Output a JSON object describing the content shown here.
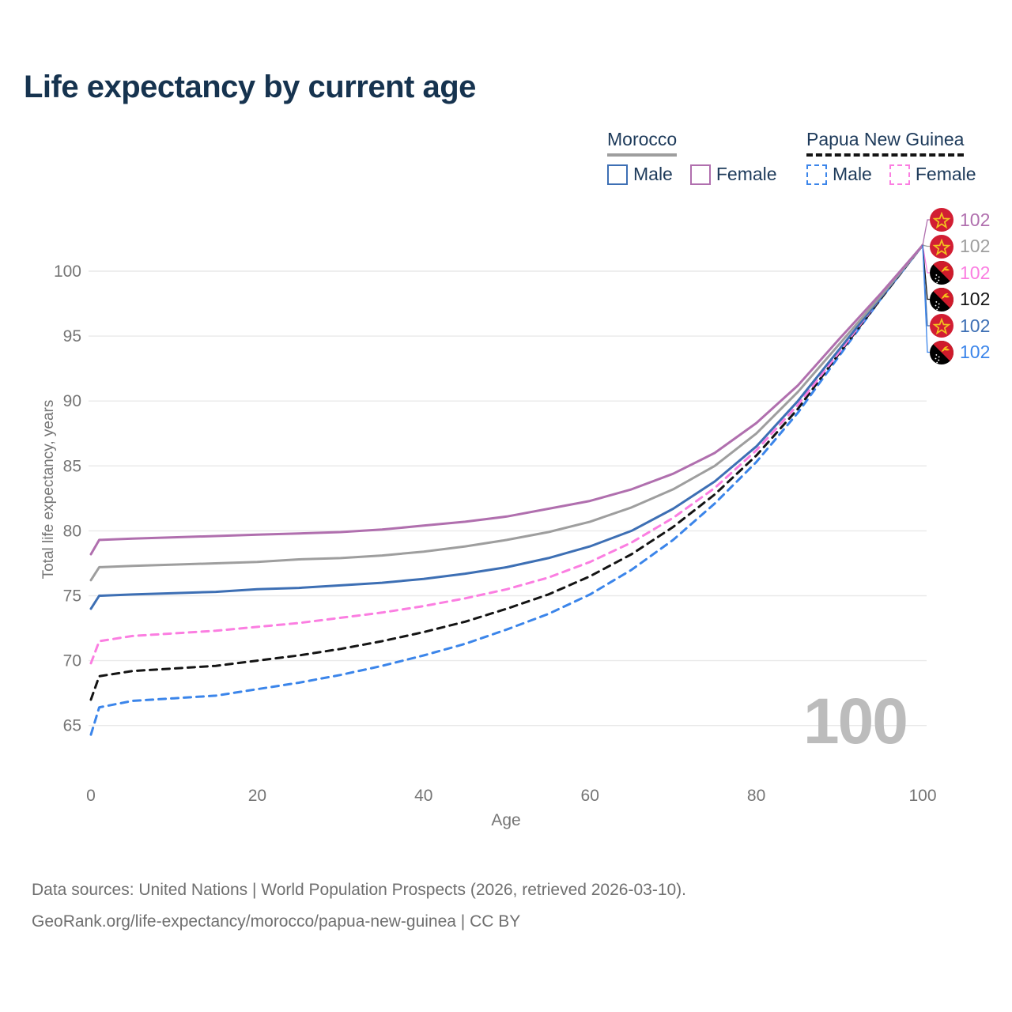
{
  "title": "Life expectancy by current age",
  "watermark": "100",
  "footer": {
    "line1": "Data sources: United Nations | World Population Prospects (2026, retrieved 2026-03-10).",
    "line2": "GeoRank.org/life-expectancy/morocco/papua-new-guinea | CC BY"
  },
  "legend": {
    "groups": [
      {
        "name": "Morocco",
        "line_style": "solid",
        "underline_color": "#9e9e9e",
        "items": [
          {
            "label": "Male",
            "color": "#3d6fb4"
          },
          {
            "label": "Female",
            "color": "#b06fae"
          }
        ]
      },
      {
        "name": "Papua New Guinea",
        "line_style": "dashed",
        "underline_color": "#141414",
        "items": [
          {
            "label": "Male",
            "color": "#3b85ea"
          },
          {
            "label": "Female",
            "color": "#fb7ee1"
          }
        ]
      }
    ]
  },
  "chart_data": {
    "type": "line",
    "title": "Life expectancy by current age",
    "xlabel": "Age",
    "ylabel": "Total life expectancy, years",
    "x_ticks": [
      0,
      20,
      40,
      60,
      80,
      100
    ],
    "y_ticks": [
      65,
      70,
      75,
      80,
      85,
      90,
      95,
      100
    ],
    "xlim": [
      0,
      100
    ],
    "ylim": [
      63.5,
      103
    ],
    "grid": "horizontal",
    "legend_position": "top-right",
    "x": [
      0,
      1,
      5,
      10,
      15,
      20,
      25,
      30,
      35,
      40,
      45,
      50,
      55,
      60,
      65,
      70,
      75,
      80,
      85,
      90,
      95,
      100
    ],
    "series": [
      {
        "name": "Morocco Female",
        "country": "Morocco",
        "sex": "Female",
        "color": "#b06fae",
        "dashed": false,
        "flag": "morocco",
        "end_label": "102",
        "values": [
          78.2,
          79.3,
          79.4,
          79.5,
          79.6,
          79.7,
          79.8,
          79.9,
          80.1,
          80.4,
          80.7,
          81.1,
          81.7,
          82.3,
          83.2,
          84.4,
          86.0,
          88.3,
          91.2,
          94.8,
          98.3,
          102
        ]
      },
      {
        "name": "Morocco",
        "country": "Morocco",
        "sex": "Both",
        "color": "#9e9e9e",
        "dashed": false,
        "flag": "morocco",
        "end_label": "102",
        "values": [
          76.2,
          77.2,
          77.3,
          77.4,
          77.5,
          77.6,
          77.8,
          77.9,
          78.1,
          78.4,
          78.8,
          79.3,
          79.9,
          80.7,
          81.8,
          83.2,
          85.0,
          87.5,
          90.7,
          94.4,
          98.1,
          102
        ]
      },
      {
        "name": "Morocco Male",
        "country": "Morocco",
        "sex": "Male",
        "color": "#3d6fb4",
        "dashed": false,
        "flag": "morocco",
        "end_label": "102",
        "values": [
          74.0,
          75.0,
          75.1,
          75.2,
          75.3,
          75.5,
          75.6,
          75.8,
          76.0,
          76.3,
          76.7,
          77.2,
          77.9,
          78.8,
          80.0,
          81.7,
          83.8,
          86.5,
          90.0,
          94.0,
          98.0,
          102
        ]
      },
      {
        "name": "Papua New Guinea Female",
        "country": "Papua New Guinea",
        "sex": "Female",
        "color": "#fb7ee1",
        "dashed": true,
        "flag": "papua-new-guinea",
        "end_label": "102",
        "values": [
          69.8,
          71.5,
          71.9,
          72.1,
          72.3,
          72.6,
          72.9,
          73.3,
          73.7,
          74.2,
          74.8,
          75.5,
          76.4,
          77.6,
          79.1,
          81.0,
          83.3,
          86.2,
          89.7,
          93.8,
          98.0,
          102
        ]
      },
      {
        "name": "Papua New Guinea",
        "country": "Papua New Guinea",
        "sex": "Both",
        "color": "#141414",
        "dashed": true,
        "flag": "papua-new-guinea",
        "end_label": "102",
        "values": [
          67.0,
          68.8,
          69.2,
          69.4,
          69.6,
          70.0,
          70.4,
          70.9,
          71.5,
          72.2,
          73.0,
          74.0,
          75.1,
          76.5,
          78.2,
          80.3,
          82.8,
          85.8,
          89.4,
          93.7,
          97.9,
          102
        ]
      },
      {
        "name": "Papua New Guinea Male",
        "country": "Papua New Guinea",
        "sex": "Male",
        "color": "#3b85ea",
        "dashed": true,
        "flag": "papua-new-guinea",
        "end_label": "102",
        "values": [
          64.3,
          66.4,
          66.9,
          67.1,
          67.3,
          67.8,
          68.3,
          68.9,
          69.6,
          70.4,
          71.3,
          72.4,
          73.6,
          75.1,
          77.0,
          79.3,
          82.1,
          85.3,
          89.1,
          93.5,
          97.9,
          102
        ]
      }
    ],
    "end_label_order": [
      0,
      1,
      3,
      4,
      2,
      5
    ]
  }
}
